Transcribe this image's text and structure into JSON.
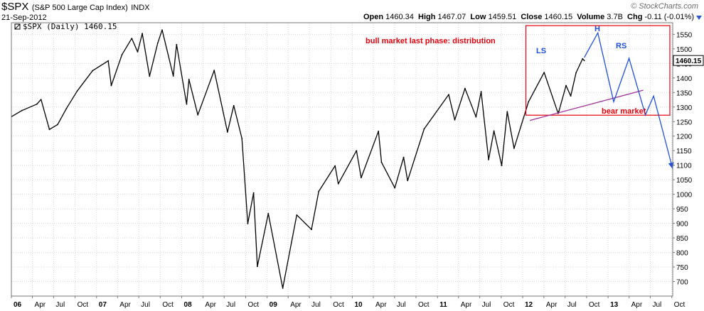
{
  "header": {
    "symbol": "$SPX",
    "name": "(S&P 500 Large Cap Index)",
    "exchange": "INDX",
    "date": "21-Sep-2012",
    "brand": "© StockCharts.com",
    "stats": [
      {
        "label": "Open",
        "value": "1460.34"
      },
      {
        "label": "High",
        "value": "1467.07"
      },
      {
        "label": "Low",
        "value": "1459.51"
      },
      {
        "label": "Close",
        "value": "1460.15"
      },
      {
        "label": "Volume",
        "value": "3.7B"
      },
      {
        "label": "Chg",
        "value": "-0.11 (-0.01%)"
      }
    ]
  },
  "colors": {
    "price": "#000000",
    "annotation_red": "#e8000b",
    "annotation_blue": "#1f4fe0",
    "neckline": "#a0309a",
    "grid": "#d7d7d7",
    "label_box": "#ffffff"
  },
  "chart_data": {
    "type": "line",
    "legend": "$SPX (Daily) 1460.15",
    "last_value_label": "1460.15",
    "yaxis": {
      "range": [
        650,
        1590
      ],
      "ticks": [
        700,
        750,
        800,
        850,
        900,
        950,
        1000,
        1050,
        1100,
        1150,
        1200,
        1250,
        1300,
        1350,
        1400,
        1450,
        1500,
        1550
      ]
    },
    "xaxis": {
      "range": [
        "2006-01-01",
        "2013-10-05"
      ],
      "ticks": [
        {
          "date": "2006-01-01",
          "label": "06"
        },
        {
          "date": "2006-04-01",
          "label": "Apr"
        },
        {
          "date": "2006-07-01",
          "label": "Jul"
        },
        {
          "date": "2006-10-01",
          "label": "Oct"
        },
        {
          "date": "2007-01-01",
          "label": "07"
        },
        {
          "date": "2007-04-01",
          "label": "Apr"
        },
        {
          "date": "2007-07-01",
          "label": "Jul"
        },
        {
          "date": "2007-10-01",
          "label": "Oct"
        },
        {
          "date": "2008-01-01",
          "label": "08"
        },
        {
          "date": "2008-04-01",
          "label": "Apr"
        },
        {
          "date": "2008-07-01",
          "label": "Jul"
        },
        {
          "date": "2008-10-01",
          "label": "Oct"
        },
        {
          "date": "2009-01-01",
          "label": "09"
        },
        {
          "date": "2009-04-01",
          "label": "Apr"
        },
        {
          "date": "2009-07-01",
          "label": "Jul"
        },
        {
          "date": "2009-10-01",
          "label": "Oct"
        },
        {
          "date": "2010-01-01",
          "label": "10"
        },
        {
          "date": "2010-04-01",
          "label": "Apr"
        },
        {
          "date": "2010-07-01",
          "label": "Jul"
        },
        {
          "date": "2010-10-01",
          "label": "Oct"
        },
        {
          "date": "2011-01-01",
          "label": "11"
        },
        {
          "date": "2011-04-01",
          "label": "Apr"
        },
        {
          "date": "2011-07-01",
          "label": "Jul"
        },
        {
          "date": "2011-10-01",
          "label": "Oct"
        },
        {
          "date": "2012-01-01",
          "label": "12"
        },
        {
          "date": "2012-04-01",
          "label": "Apr"
        },
        {
          "date": "2012-07-01",
          "label": "Jul"
        },
        {
          "date": "2012-10-01",
          "label": "Oct"
        },
        {
          "date": "2013-01-01",
          "label": "13"
        },
        {
          "date": "2013-04-01",
          "label": "Apr"
        },
        {
          "date": "2013-07-01",
          "label": "Jul"
        },
        {
          "date": "2013-10-01",
          "label": "Oct"
        }
      ]
    },
    "series": [
      {
        "name": "$SPX (Daily)",
        "points": [
          [
            "2006-01-03",
            1268
          ],
          [
            "2006-02-15",
            1288
          ],
          [
            "2006-04-20",
            1310
          ],
          [
            "2006-05-08",
            1326
          ],
          [
            "2006-06-13",
            1223
          ],
          [
            "2006-07-18",
            1240
          ],
          [
            "2006-08-25",
            1295
          ],
          [
            "2006-10-10",
            1355
          ],
          [
            "2006-12-15",
            1425
          ],
          [
            "2007-02-20",
            1459
          ],
          [
            "2007-03-05",
            1374
          ],
          [
            "2007-04-20",
            1480
          ],
          [
            "2007-06-01",
            1536
          ],
          [
            "2007-06-26",
            1490
          ],
          [
            "2007-07-16",
            1553
          ],
          [
            "2007-08-16",
            1406
          ],
          [
            "2007-09-20",
            1520
          ],
          [
            "2007-10-09",
            1565
          ],
          [
            "2007-11-26",
            1407
          ],
          [
            "2007-12-10",
            1515
          ],
          [
            "2008-01-22",
            1310
          ],
          [
            "2008-02-01",
            1395
          ],
          [
            "2008-03-10",
            1273
          ],
          [
            "2008-05-19",
            1426
          ],
          [
            "2008-07-15",
            1214
          ],
          [
            "2008-08-11",
            1305
          ],
          [
            "2008-09-15",
            1192
          ],
          [
            "2008-10-10",
            899
          ],
          [
            "2008-11-04",
            1005
          ],
          [
            "2008-11-20",
            752
          ],
          [
            "2009-01-06",
            934
          ],
          [
            "2009-03-09",
            677
          ],
          [
            "2009-05-08",
            929
          ],
          [
            "2009-07-10",
            879
          ],
          [
            "2009-08-10",
            1010
          ],
          [
            "2009-10-19",
            1098
          ],
          [
            "2009-11-02",
            1036
          ],
          [
            "2010-01-19",
            1150
          ],
          [
            "2010-02-08",
            1057
          ],
          [
            "2010-04-23",
            1217
          ],
          [
            "2010-05-06",
            1110
          ],
          [
            "2010-07-02",
            1022
          ],
          [
            "2010-08-09",
            1127
          ],
          [
            "2010-08-26",
            1047
          ],
          [
            "2010-11-05",
            1225
          ],
          [
            "2011-02-18",
            1343
          ],
          [
            "2011-03-16",
            1256
          ],
          [
            "2011-04-29",
            1364
          ],
          [
            "2011-06-15",
            1266
          ],
          [
            "2011-07-07",
            1353
          ],
          [
            "2011-08-08",
            1119
          ],
          [
            "2011-08-31",
            1218
          ],
          [
            "2011-10-03",
            1099
          ],
          [
            "2011-10-27",
            1284
          ],
          [
            "2011-11-25",
            1158
          ],
          [
            "2012-01-26",
            1318
          ],
          [
            "2012-04-02",
            1419
          ],
          [
            "2012-06-01",
            1278
          ],
          [
            "2012-06-04",
            1285
          ],
          [
            "2012-07-05",
            1374
          ],
          [
            "2012-07-25",
            1338
          ],
          [
            "2012-08-17",
            1418
          ],
          [
            "2012-09-14",
            1466
          ],
          [
            "2012-09-21",
            1460.15
          ]
        ]
      }
    ],
    "annotations": [
      {
        "type": "text",
        "text": "bull market last phase: distribution",
        "color": "red"
      },
      {
        "type": "text",
        "text": "bear market",
        "color": "red"
      },
      {
        "type": "text",
        "text": "LS",
        "color": "blue"
      },
      {
        "type": "text",
        "text": "H",
        "color": "blue"
      },
      {
        "type": "text",
        "text": "RS",
        "color": "blue"
      },
      {
        "type": "box",
        "from": {
          "date": "2012-01-15",
          "value": 1580
        },
        "to": {
          "date": "2013-10-05",
          "value": 1272
        },
        "color": "red"
      },
      {
        "type": "neckline",
        "from": {
          "date": "2012-02-01",
          "value": 1254
        },
        "to": {
          "date": "2013-06-01",
          "value": 1358
        },
        "color": "purple"
      },
      {
        "type": "projection",
        "color": "blue",
        "points": [
          [
            "2012-09-21",
            1470
          ],
          [
            "2012-11-18",
            1555
          ],
          [
            "2013-01-25",
            1318
          ],
          [
            "2013-04-01",
            1468
          ],
          [
            "2013-06-10",
            1273
          ],
          [
            "2013-07-15",
            1338
          ],
          [
            "2013-10-05",
            1087
          ]
        ]
      }
    ]
  }
}
